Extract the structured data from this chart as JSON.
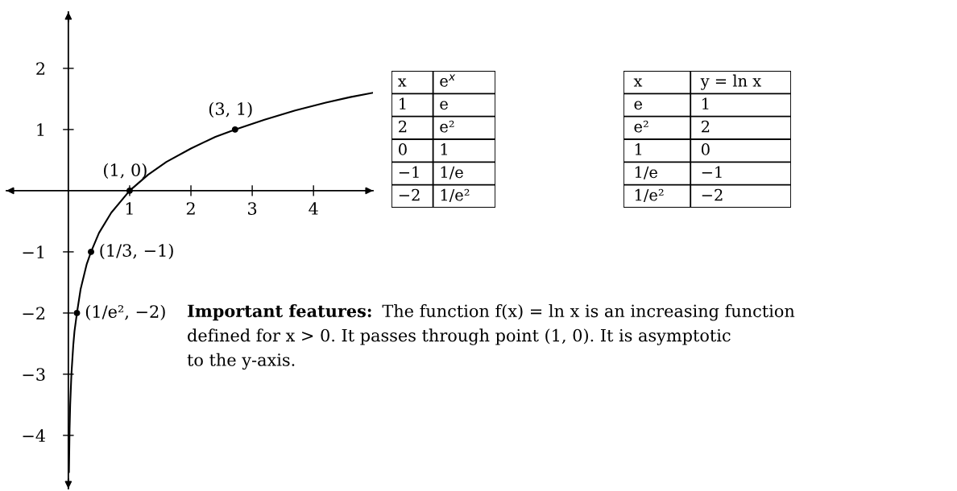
{
  "chart_data": [
    {
      "type": "line",
      "xlim": [
        -1.01,
        4.97
      ],
      "ylim": [
        -4.87,
        2.92
      ],
      "xticks": [
        1,
        2,
        3,
        4
      ],
      "yticks": [
        -4,
        -3,
        -2,
        -1,
        1,
        2
      ],
      "grid": false,
      "series": [
        {
          "type": "line",
          "color": "#000000",
          "line_style": "solid",
          "x": [
            0.01,
            0.02,
            0.03,
            0.05,
            0.08,
            0.1,
            0.14,
            0.2,
            0.3,
            0.37,
            0.5,
            0.7,
            1,
            1.3,
            1.6,
            2,
            2.4,
            2.72,
            3.2,
            3.7,
            4.2,
            4.6,
            4.97
          ],
          "values": [
            -4.6,
            -3.9,
            -3.5,
            -3.0,
            -2.53,
            -2.3,
            -2.0,
            -1.61,
            -1.2,
            -1.0,
            -0.69,
            -0.36,
            0,
            0.26,
            0.47,
            0.69,
            0.88,
            1.0,
            1.16,
            1.31,
            1.44,
            1.53,
            1.6
          ]
        },
        {
          "type": "scatter",
          "color": "#000000",
          "marker": "circle",
          "x": [
            0.14,
            0.37,
            1,
            2.72
          ],
          "values": [
            -2,
            -1,
            0,
            1
          ]
        }
      ],
      "annotations": [
        {
          "text": "(1/e², −2)",
          "x": 0.14,
          "y": -2
        },
        {
          "text": "(1/3, −1)",
          "x": 0.37,
          "y": -1
        },
        {
          "text": "(1, 0)",
          "x": 1,
          "y": 0
        },
        {
          "text": "(3, 1)",
          "x": 2.72,
          "y": 1
        }
      ]
    },
    {
      "type": "other",
      "annotations": [
        "x",
        "e$^{x}$",
        "1",
        "e",
        "2",
        "e²",
        "0",
        "1",
        "−1",
        "1/e",
        "−2",
        "1/e²"
      ]
    },
    {
      "type": "other",
      "annotations": [
        "x",
        "y = ln x",
        "e",
        "1",
        "e²",
        "2",
        "1",
        "0",
        "1/e",
        "−1",
        "1/e²",
        "−2"
      ]
    },
    {
      "type": "other",
      "annotations": [
        "Important features:",
        "The function f(x) = ln x is an increasing function",
        "defined for x > 0. It passes through point (1, 0). It is asymptotic",
        "to the y-axis."
      ]
    }
  ]
}
